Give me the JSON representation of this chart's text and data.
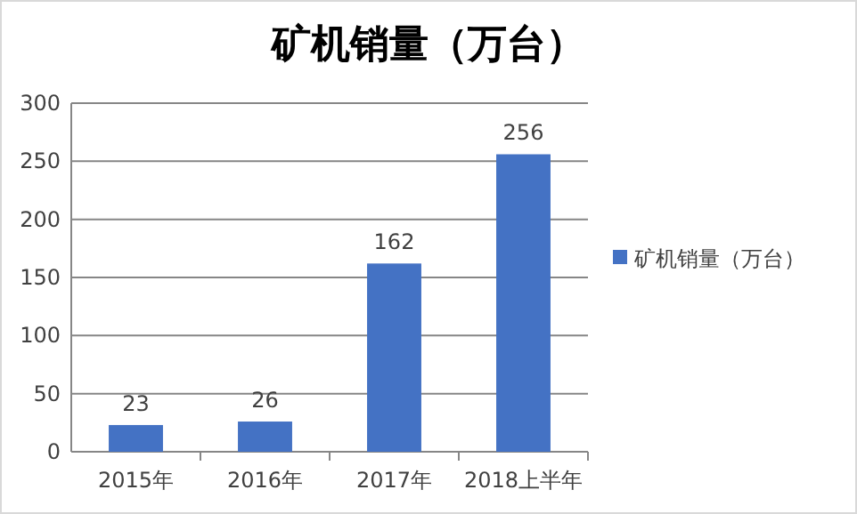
{
  "chart_data": {
    "type": "bar",
    "title": "矿机销量（万台）",
    "categories": [
      "2015年",
      "2016年",
      "2017年",
      "2018上半年"
    ],
    "series": [
      {
        "name": "矿机销量（万台）",
        "color": "#4472c4",
        "values": [
          23,
          26,
          162,
          256
        ]
      }
    ],
    "ylim": [
      0,
      300
    ],
    "yticks": [
      0,
      50,
      100,
      150,
      200,
      250,
      300
    ],
    "grid": "y",
    "legend": "right",
    "data_labels": true
  }
}
